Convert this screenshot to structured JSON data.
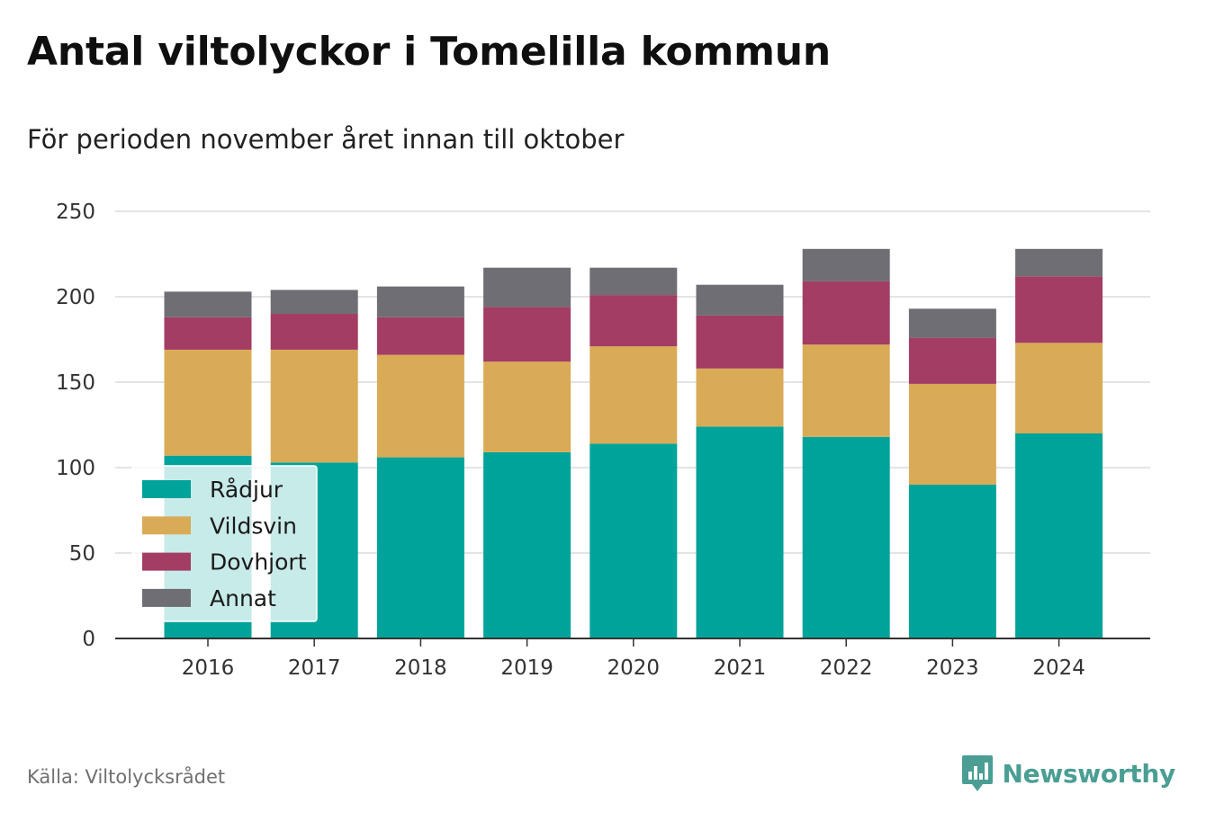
{
  "title": "Antal viltolyckor i Tomelilla kommun",
  "subtitle": "För perioden november året innan till oktober",
  "source": "Källa: Viltolycksrådet",
  "brand": {
    "name": "Newsworthy",
    "logo_icon": "bar-chart-speech-bubble-icon",
    "color": "#4a9e93"
  },
  "chart_data": {
    "type": "bar",
    "stacked": true,
    "categories": [
      "2016",
      "2017",
      "2018",
      "2019",
      "2020",
      "2021",
      "2022",
      "2023",
      "2024"
    ],
    "series": [
      {
        "name": "Rådjur",
        "color": "#00a39a",
        "values": [
          107,
          103,
          106,
          109,
          114,
          124,
          118,
          90,
          120
        ]
      },
      {
        "name": "Vildsvin",
        "color": "#d9ab57",
        "values": [
          62,
          66,
          60,
          53,
          57,
          34,
          54,
          59,
          53
        ]
      },
      {
        "name": "Dovhjort",
        "color": "#a33d63",
        "values": [
          19,
          21,
          22,
          32,
          30,
          31,
          37,
          27,
          39
        ]
      },
      {
        "name": "Annat",
        "color": "#6e6e74",
        "values": [
          15,
          14,
          18,
          23,
          16,
          18,
          19,
          17,
          16
        ]
      }
    ],
    "ylim": [
      0,
      250
    ],
    "yticks": [
      "0",
      "50",
      "100",
      "150",
      "200",
      "250"
    ],
    "grid": true,
    "legend_position": "bottom-left",
    "xlabel": "",
    "ylabel": ""
  }
}
